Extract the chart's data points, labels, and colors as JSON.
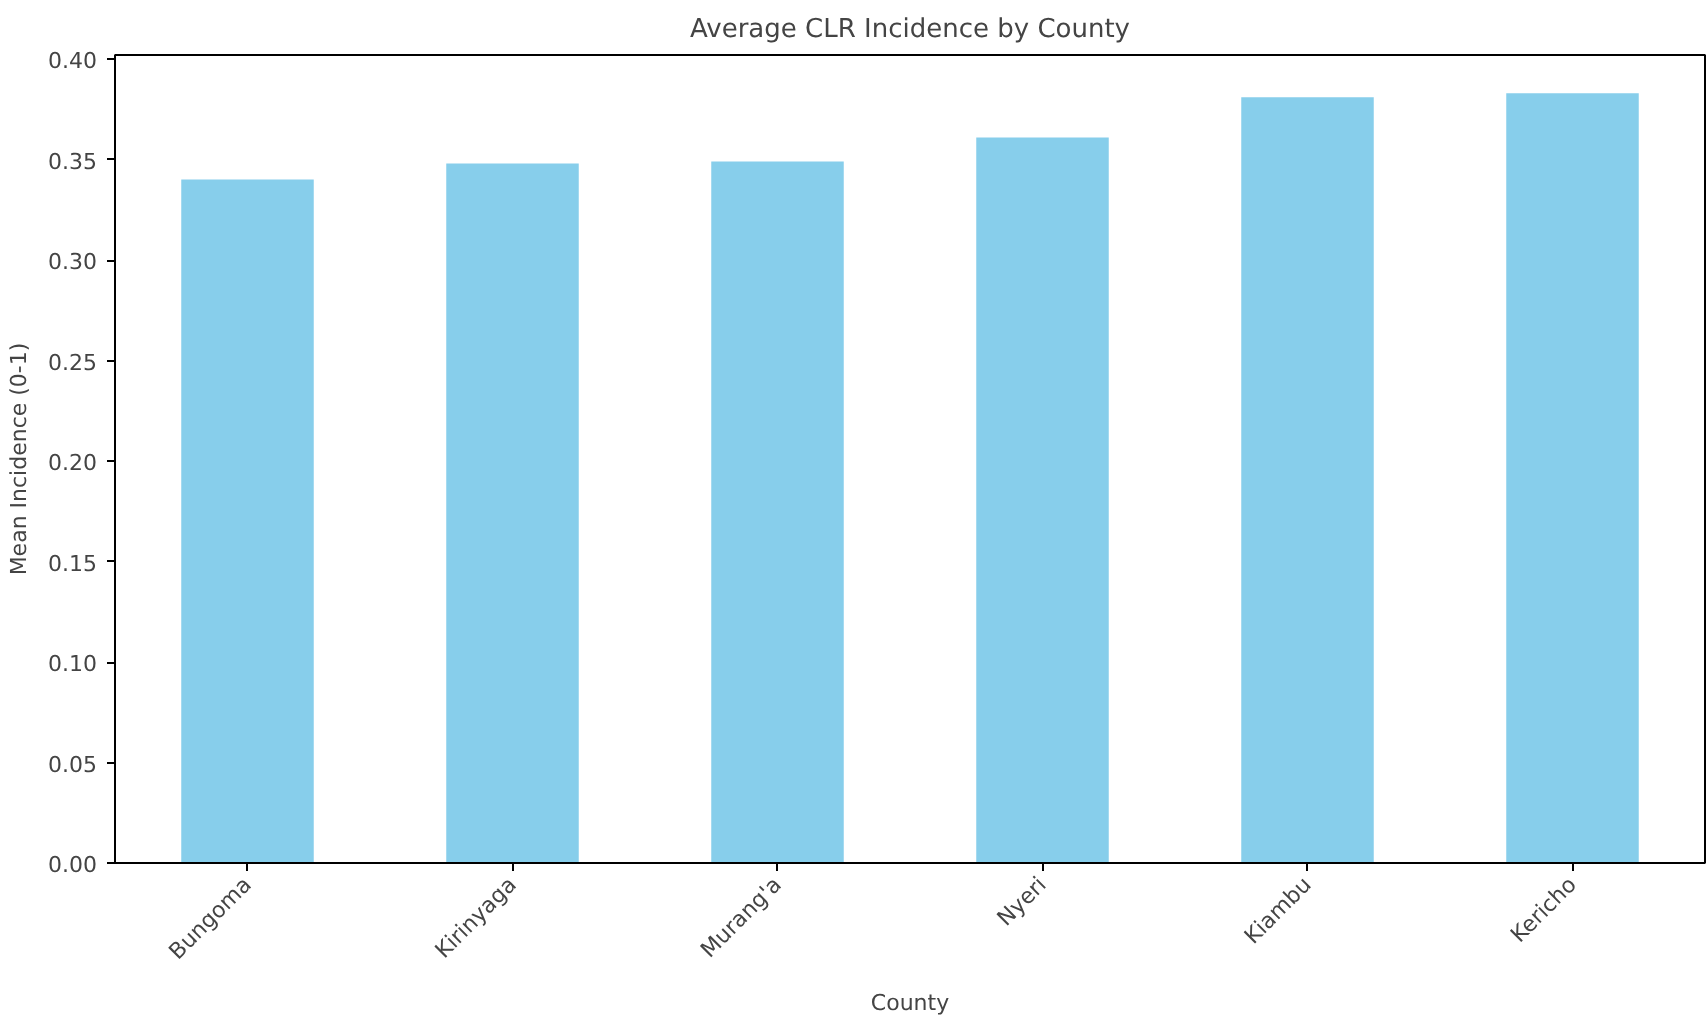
{
  "chart_data": {
    "type": "bar",
    "title": "Average CLR Incidence by County",
    "xlabel": "County",
    "ylabel": "Mean Incidence (0-1)",
    "categories": [
      "Bungoma",
      "Kirinyaga",
      "Murang'a",
      "Nyeri",
      "Kiambu",
      "Kericho"
    ],
    "values": [
      0.34,
      0.348,
      0.349,
      0.361,
      0.381,
      0.383
    ],
    "color": "#87ceeb",
    "ylim": [
      0,
      0.402
    ],
    "yticks": [
      {
        "value": 0,
        "label": "0.00"
      },
      {
        "value": 0.05,
        "label": "0.05"
      },
      {
        "value": 0.1,
        "label": "0.10"
      },
      {
        "value": 0.15,
        "label": "0.15"
      },
      {
        "value": 0.2,
        "label": "0.20"
      },
      {
        "value": 0.25,
        "label": "0.25"
      },
      {
        "value": 0.3,
        "label": "0.30"
      },
      {
        "value": 0.35,
        "label": "0.35"
      },
      {
        "value": 0.4,
        "label": "0.40"
      }
    ],
    "grid": false
  }
}
